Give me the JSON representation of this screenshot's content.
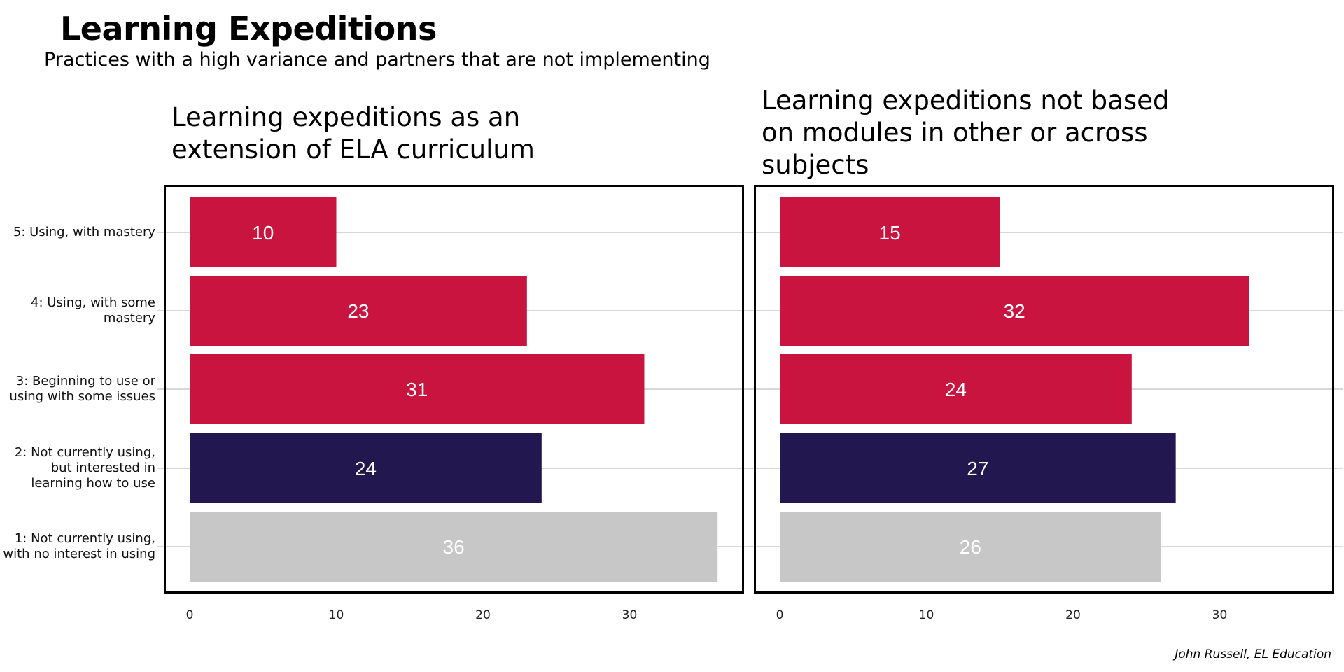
{
  "header": {
    "title": "Learning Expeditions",
    "subtitle": "Practices with a high variance and partners that are not implementing"
  },
  "credit": "John Russell, EL Education",
  "colors": {
    "using": "#c8143f",
    "interested": "#22174f",
    "no_interest": "#c7c7c7",
    "gridline": "#cccccc",
    "bar_label": "#ffffff"
  },
  "categories": [
    "5: Using, with mastery",
    "4: Using, with some\nmastery",
    "3: Beginning to use or\nusing with some issues",
    "2: Not currently using,\nbut interested in\nlearning how to use",
    "1: Not currently using,\nwith no interest in using"
  ],
  "chart_data": [
    {
      "type": "bar",
      "orientation": "horizontal",
      "title": "Learning expeditions as an\nextension of ELA curriculum",
      "categories": [
        "5: Using, with mastery",
        "4: Using, with some mastery",
        "3: Beginning to use or using with some issues",
        "2: Not currently using, but interested in learning how to use",
        "1: Not currently using, with no interest in using"
      ],
      "values": [
        10,
        23,
        31,
        24,
        36
      ],
      "bar_colors": [
        "#c8143f",
        "#c8143f",
        "#c8143f",
        "#22174f",
        "#c7c7c7"
      ],
      "xlim": [
        0,
        37
      ],
      "xticks": [
        0,
        10,
        20,
        30
      ],
      "xlabel": "",
      "ylabel": "",
      "grid": "horizontal"
    },
    {
      "type": "bar",
      "orientation": "horizontal",
      "title": "Learning expeditions not based\non modules in other or across\nsubjects",
      "categories": [
        "5: Using, with mastery",
        "4: Using, with some mastery",
        "3: Beginning to use or using with some issues",
        "2: Not currently using, but interested in learning how to use",
        "1: Not currently using, with no interest in using"
      ],
      "values": [
        15,
        32,
        24,
        27,
        26
      ],
      "bar_colors": [
        "#c8143f",
        "#c8143f",
        "#c8143f",
        "#22174f",
        "#c7c7c7"
      ],
      "xlim": [
        0,
        37
      ],
      "xticks": [
        0,
        10,
        20,
        30
      ],
      "xlabel": "",
      "ylabel": "",
      "grid": "horizontal"
    }
  ]
}
